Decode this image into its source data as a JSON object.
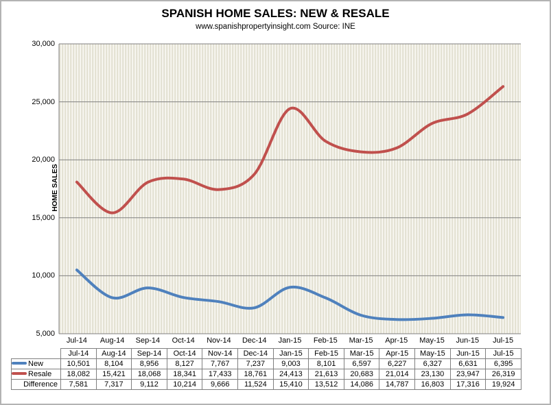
{
  "header": {
    "title": "SPANISH HOME SALES: NEW & RESALE",
    "subtitle": "www.spanishpropertyinsight.com Source: INE"
  },
  "chart_data": {
    "type": "line",
    "title": "SPANISH HOME SALES: NEW & RESALE",
    "subtitle": "www.spanishpropertyinsight.com Source: INE",
    "xlabel": "",
    "ylabel": "HOME SALES",
    "categories": [
      "Jul-14",
      "Aug-14",
      "Sep-14",
      "Oct-14",
      "Nov-14",
      "Dec-14",
      "Jan-15",
      "Feb-15",
      "Mar-15",
      "Apr-15",
      "May-15",
      "Jun-15",
      "Jul-15"
    ],
    "series": [
      {
        "name": "New",
        "color": "#4f81bd",
        "values": [
          10501,
          8104,
          8956,
          8127,
          7767,
          7237,
          9003,
          8101,
          6597,
          6227,
          6327,
          6631,
          6395
        ]
      },
      {
        "name": "Resale",
        "color": "#c0504d",
        "values": [
          18082,
          15421,
          18068,
          18341,
          17433,
          18761,
          24413,
          21613,
          20683,
          21014,
          23130,
          23947,
          26319
        ]
      }
    ],
    "ylim": [
      5000,
      30000
    ],
    "ytick_step": 5000,
    "ytick_labels": [
      "5,000",
      "10,000",
      "15,000",
      "20,000",
      "25,000",
      "30,000"
    ],
    "grid": "horizontal-only",
    "smooth": true,
    "legend_position": "data-table"
  },
  "table": {
    "columns": [
      "Jul-14",
      "Aug-14",
      "Sep-14",
      "Oct-14",
      "Nov-14",
      "Dec-14",
      "Jan-15",
      "Feb-15",
      "Mar-15",
      "Apr-15",
      "May-15",
      "Jun-15",
      "Jul-15"
    ],
    "rows": [
      {
        "label": "New",
        "swatch": "#4f81bd",
        "values": [
          "10,501",
          "8,104",
          "8,956",
          "8,127",
          "7,767",
          "7,237",
          "9,003",
          "8,101",
          "6,597",
          "6,227",
          "6,327",
          "6,631",
          "6,395"
        ]
      },
      {
        "label": "Resale",
        "swatch": "#c0504d",
        "values": [
          "18,082",
          "15,421",
          "18,068",
          "18,341",
          "17,433",
          "18,761",
          "24,413",
          "21,613",
          "20,683",
          "21,014",
          "23,130",
          "23,947",
          "26,319"
        ]
      },
      {
        "label": "Difference",
        "swatch": null,
        "values": [
          "7,581",
          "7,317",
          "9,112",
          "10,214",
          "9,666",
          "11,524",
          "15,410",
          "13,512",
          "14,086",
          "14,787",
          "16,803",
          "17,316",
          "19,924"
        ]
      }
    ]
  },
  "colors": {
    "new_line": "#4f81bd",
    "resale_line": "#c0504d",
    "gridline": "#7f7f7f",
    "axis_line": "#7f7f7f",
    "plot_stripe_dark": "#e4e2d4",
    "plot_stripe_light": "#fbfaf6",
    "table_border": "#7f7f7f",
    "outer_border": "#b3b3b3"
  }
}
